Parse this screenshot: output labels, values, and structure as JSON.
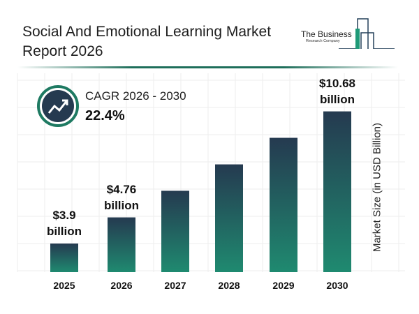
{
  "title": "Social And Emotional Learning Market Report 2026",
  "logo": {
    "line1": "The Business",
    "line2": "Research Company"
  },
  "cagr": {
    "label": "CAGR 2026 - 2030",
    "value": "22.4%",
    "icon": "trending-up-icon"
  },
  "chart_data": {
    "type": "bar",
    "categories": [
      "2025",
      "2026",
      "2027",
      "2028",
      "2029",
      "2030"
    ],
    "values": [
      3.9,
      4.76,
      5.83,
      7.13,
      8.73,
      10.68
    ],
    "data_labels": [
      {
        "index": 0,
        "line1": "$3.9",
        "line2": "billion"
      },
      {
        "index": 1,
        "line1": "$4.76",
        "line2": "billion"
      },
      {
        "index": 5,
        "line1": "$10.68",
        "line2": "billion"
      }
    ],
    "ylabel": "Market Size (in USD Billion)",
    "xlabel": "",
    "grid": true,
    "colors": {
      "bar_top": "#253a50",
      "bar_bottom": "#1f8a70",
      "accent": "#1e6e5a"
    }
  }
}
